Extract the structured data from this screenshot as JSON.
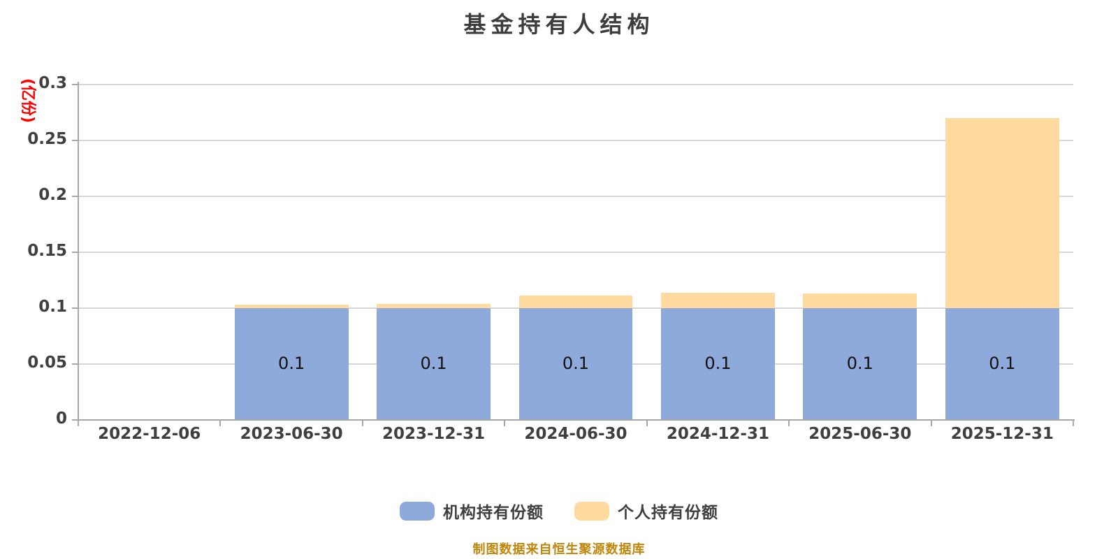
{
  "chart_data": {
    "type": "bar",
    "stacked": true,
    "title": "基金持有人结构",
    "ylabel": "(亿份)",
    "xlabel": "",
    "source_note": "制图数据来自恒生聚源数据库",
    "categories": [
      "2022-12-06",
      "2023-06-30",
      "2023-12-31",
      "2024-06-30",
      "2024-12-31",
      "2025-06-30",
      "2025-12-31"
    ],
    "series": [
      {
        "name": "机构持有份额",
        "color": "#8EAADB",
        "values": [
          0,
          0.1,
          0.1,
          0.1,
          0.1,
          0.1,
          0.1
        ],
        "data_labels": [
          "",
          "0.1",
          "0.1",
          "0.1",
          "0.1",
          "0.1",
          "0.1"
        ]
      },
      {
        "name": "个人持有份额",
        "color": "#FFD99D",
        "values": [
          0,
          0.003,
          0.004,
          0.011,
          0.014,
          0.013,
          0.17
        ],
        "data_labels": [
          "",
          "",
          "",
          "",
          "",
          "",
          ""
        ]
      }
    ],
    "ylim": [
      0,
      0.3
    ],
    "yticks": [
      0,
      0.05,
      0.1,
      0.15,
      0.2,
      0.25,
      0.3
    ],
    "grid": true,
    "legend_position": "bottom"
  },
  "colors": {
    "background": "#FFFFFF",
    "title_text": "#3D3D3D",
    "tick_text": "#3F3F3F",
    "axis_line": "#A6A6A6",
    "gridline": "#D6D6D6",
    "ylabel_text": "#FF0000",
    "value_label_text": "#111111",
    "source_note_text": "#BE860B",
    "institutional_bar": "#8EAADB",
    "individual_bar": "#FFD99D"
  }
}
